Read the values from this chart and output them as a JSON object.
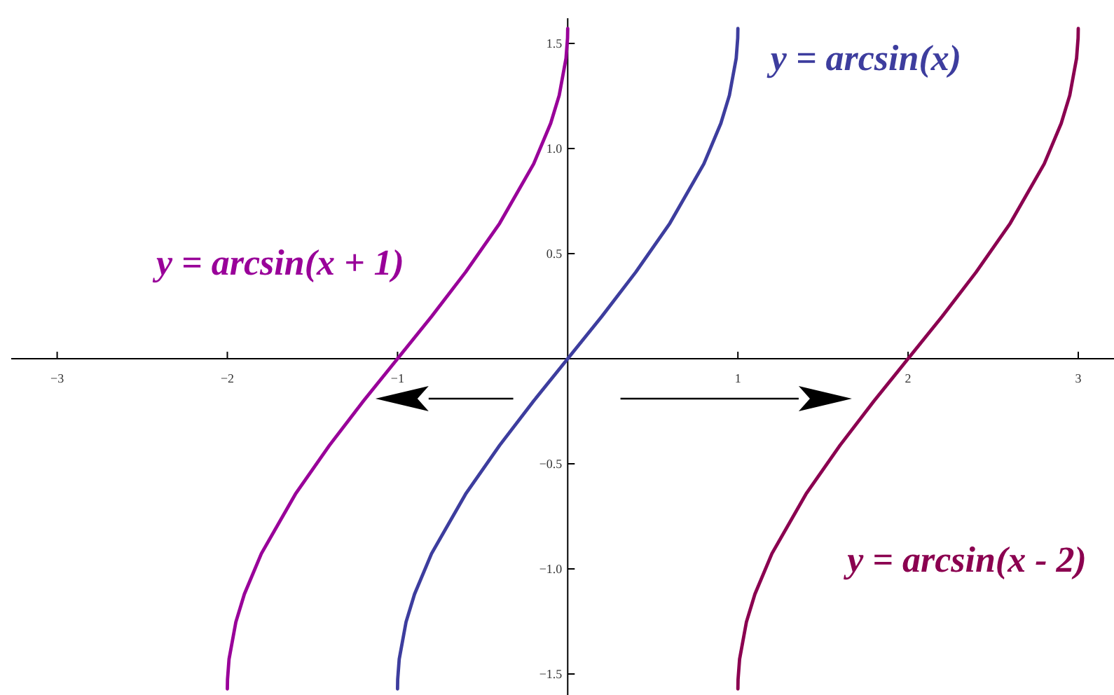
{
  "chart_data": {
    "type": "line",
    "xlim": [
      -3.27,
      3.21
    ],
    "ylim": [
      -1.6,
      1.62
    ],
    "xticks": [
      {
        "value": -3,
        "label": "−3"
      },
      {
        "value": -2,
        "label": "−2"
      },
      {
        "value": -1,
        "label": "−1"
      },
      1,
      2,
      3
    ],
    "yticks": [
      {
        "value": -1.5,
        "label": "−1.5"
      },
      {
        "value": -1,
        "label": "−1.0"
      },
      {
        "value": -0.5,
        "label": "−0.5"
      },
      0.5,
      {
        "value": 1,
        "label": "1.0"
      },
      1.5
    ],
    "grid": false,
    "marker": "none",
    "line_style": "solid",
    "series": [
      {
        "name": "y = arcsin(x + 1)",
        "color": "#990099",
        "x": [
          -2,
          -1.999,
          -1.99,
          -1.95,
          -1.9,
          -1.8,
          -1.6,
          -1.4,
          -1.2,
          -1,
          -0.8,
          -0.6,
          -0.4,
          -0.2,
          -0.1,
          -0.05,
          -0.01,
          -0.001,
          0
        ],
        "values": [
          -1.571,
          -1.526,
          -1.429,
          -1.253,
          -1.12,
          -0.927,
          -0.644,
          -0.412,
          -0.201,
          0,
          0.201,
          0.412,
          0.644,
          0.927,
          1.12,
          1.253,
          1.429,
          1.526,
          1.571
        ]
      },
      {
        "name": "y = arcsin(x)",
        "color": "#3d3d9e",
        "x": [
          -1,
          -0.999,
          -0.99,
          -0.95,
          -0.9,
          -0.8,
          -0.6,
          -0.4,
          -0.2,
          0,
          0.2,
          0.4,
          0.6,
          0.8,
          0.9,
          0.95,
          0.99,
          0.999,
          1
        ],
        "values": [
          -1.571,
          -1.526,
          -1.429,
          -1.253,
          -1.12,
          -0.927,
          -0.644,
          -0.412,
          -0.201,
          0,
          0.201,
          0.412,
          0.644,
          0.927,
          1.12,
          1.253,
          1.429,
          1.526,
          1.571
        ]
      },
      {
        "name": "y = arcsin(x - 2)",
        "color": "#8b0050",
        "x": [
          1,
          1.001,
          1.01,
          1.05,
          1.1,
          1.2,
          1.4,
          1.6,
          1.8,
          2,
          2.2,
          2.4,
          2.6,
          2.8,
          2.9,
          2.95,
          2.99,
          2.999,
          3
        ],
        "values": [
          -1.571,
          -1.526,
          -1.429,
          -1.253,
          -1.12,
          -0.927,
          -0.644,
          -0.412,
          -0.201,
          0,
          0.201,
          0.412,
          0.644,
          0.927,
          1.12,
          1.253,
          1.429,
          1.526,
          1.571
        ]
      }
    ]
  }
}
